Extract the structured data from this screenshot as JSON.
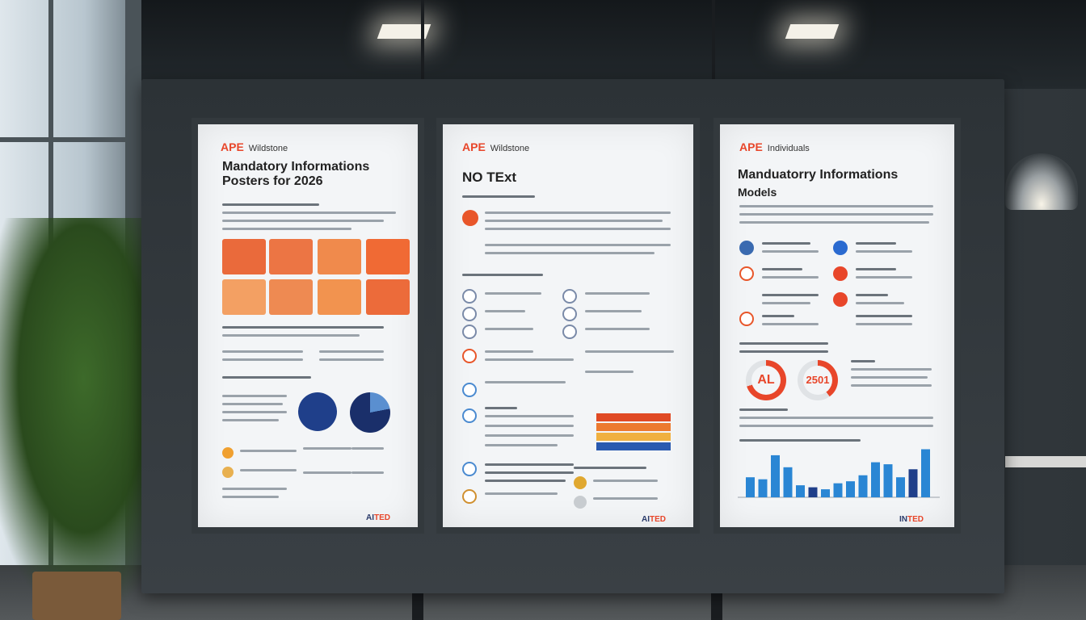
{
  "posters": [
    {
      "brand": "APE",
      "brand_sub": "Wildstone",
      "title_line1": "Mandatory Informations",
      "title_line2": "Posters for 2026",
      "footer": "AI",
      "footer_accent": "TED"
    },
    {
      "brand": "APE",
      "brand_sub": "Wildstone",
      "title_line1": "NO TExt",
      "title_line2": "",
      "footer": "AI",
      "footer_accent": "TED"
    },
    {
      "brand": "APE",
      "brand_sub": "Individuals",
      "title_line1": "Manduatorry Informations",
      "title_line2": "Models",
      "gauge_left": "AL",
      "gauge_right": "2501",
      "footer": "IN",
      "footer_accent": "TED"
    }
  ],
  "colors": {
    "brand_orange": "#e8462a",
    "tile_orange": "#ef7a3d",
    "chart_blue": "#2a86d4",
    "chart_navy": "#1f3f8a"
  },
  "chart_data": {
    "type": "bar",
    "values": [
      20,
      18,
      42,
      30,
      12,
      10,
      8,
      14,
      16,
      22,
      35,
      33,
      20,
      28,
      48
    ]
  }
}
